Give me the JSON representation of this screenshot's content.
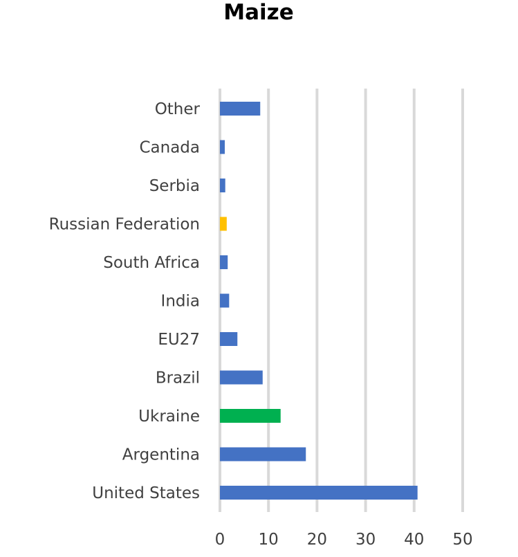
{
  "chart_data": {
    "type": "bar",
    "orientation": "horizontal",
    "title": "Maize",
    "xlabel": "",
    "ylabel": "",
    "categories": [
      "United States",
      "Argentina",
      "Ukraine",
      "Brazil",
      "EU27",
      "India",
      "South Africa",
      "Russian Federation",
      "Serbia",
      "Canada",
      "Other"
    ],
    "values": [
      40.7,
      17.7,
      12.5,
      8.8,
      3.6,
      1.9,
      1.6,
      1.4,
      1.1,
      1.0,
      8.3
    ],
    "bar_colors": [
      "#4472C4",
      "#4472C4",
      "#00B050",
      "#4472C4",
      "#4472C4",
      "#4472C4",
      "#4472C4",
      "#FFC000",
      "#4472C4",
      "#4472C4",
      "#4472C4"
    ],
    "xlim": [
      0,
      50
    ],
    "xticks": [
      0,
      10,
      20,
      30,
      40,
      50
    ],
    "grid": true,
    "legend": "none",
    "gridline_color": "#D9D9D9"
  }
}
